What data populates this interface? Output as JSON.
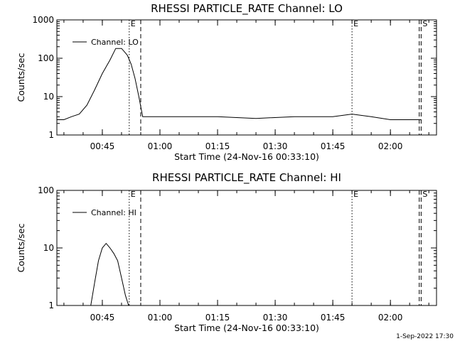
{
  "chart_data": [
    {
      "type": "line",
      "title": "RHESSI PARTICLE_RATE Channel: LO",
      "xlabel": "Start Time (24-Nov-16 00:33:10)",
      "ylabel": "Counts/sec",
      "yscale": "log",
      "ylim": [
        1,
        1000
      ],
      "y_ticks": [
        1,
        10,
        100,
        1000
      ],
      "y_tick_labels": [
        "1",
        "10",
        "100",
        "1000"
      ],
      "xlim": [
        "00:33:10",
        "02:12:00"
      ],
      "x_ticks": [
        "00:45",
        "01:00",
        "01:15",
        "01:30",
        "01:45",
        "02:00"
      ],
      "legend": {
        "position": "top-left",
        "entries": [
          "Channel: LO"
        ]
      },
      "grid": false,
      "markers": [
        {
          "label": "E",
          "time": "00:52:00",
          "style": "dotted"
        },
        {
          "label": "",
          "time": "00:55:00",
          "style": "dashed"
        },
        {
          "label": "E",
          "time": "01:50:00",
          "style": "dotted"
        },
        {
          "label": "",
          "time": "02:07:30",
          "style": "dashed"
        },
        {
          "label": "S",
          "time": "02:08:00",
          "style": "dashed"
        }
      ],
      "series": [
        {
          "name": "Channel: LO",
          "x": [
            "00:33:10",
            "00:35:00",
            "00:37:00",
            "00:39:00",
            "00:41:00",
            "00:43:00",
            "00:45:00",
            "00:47:00",
            "00:48:30",
            "00:50:00",
            "00:51:30",
            "00:52:30",
            "00:53:30",
            "00:54:30",
            "00:55:30",
            "00:57:00",
            "01:05:00",
            "01:15:00",
            "01:25:00",
            "01:35:00",
            "01:45:00",
            "01:50:00",
            "01:55:00",
            "02:00:00",
            "02:05:00",
            "02:08:00"
          ],
          "y": [
            2.5,
            2.5,
            3,
            3.5,
            6,
            15,
            40,
            90,
            180,
            180,
            120,
            70,
            30,
            10,
            3,
            3,
            3,
            3,
            2.7,
            3,
            3,
            3.5,
            3,
            2.5,
            2.5,
            2.5
          ]
        }
      ]
    },
    {
      "type": "line",
      "title": "RHESSI PARTICLE_RATE Channel: HI",
      "xlabel": "Start Time (24-Nov-16 00:33:10)",
      "ylabel": "Counts/sec",
      "yscale": "log",
      "ylim": [
        1,
        100
      ],
      "y_ticks": [
        1,
        10,
        100
      ],
      "y_tick_labels": [
        "1",
        "10",
        "100"
      ],
      "xlim": [
        "00:33:10",
        "02:12:00"
      ],
      "x_ticks": [
        "00:45",
        "01:00",
        "01:15",
        "01:30",
        "01:45",
        "02:00"
      ],
      "legend": {
        "position": "top-left",
        "entries": [
          "Channel: HI"
        ]
      },
      "grid": false,
      "markers": [
        {
          "label": "E",
          "time": "00:52:00",
          "style": "dotted"
        },
        {
          "label": "",
          "time": "00:55:00",
          "style": "dashed"
        },
        {
          "label": "E",
          "time": "01:50:00",
          "style": "dotted"
        },
        {
          "label": "",
          "time": "02:07:30",
          "style": "dashed"
        },
        {
          "label": "S",
          "time": "02:08:00",
          "style": "dashed"
        }
      ],
      "series": [
        {
          "name": "Channel: HI",
          "x": [
            "00:42:00",
            "00:43:00",
            "00:44:00",
            "00:45:00",
            "00:46:00",
            "00:47:00",
            "00:48:00",
            "00:49:00",
            "00:50:00",
            "00:51:00",
            "00:51:50"
          ],
          "y": [
            1,
            2.5,
            6,
            10,
            12,
            10,
            8,
            6,
            3,
            1.5,
            1
          ]
        }
      ]
    }
  ],
  "footer": {
    "timestamp": "1-Sep-2022 17:30"
  }
}
